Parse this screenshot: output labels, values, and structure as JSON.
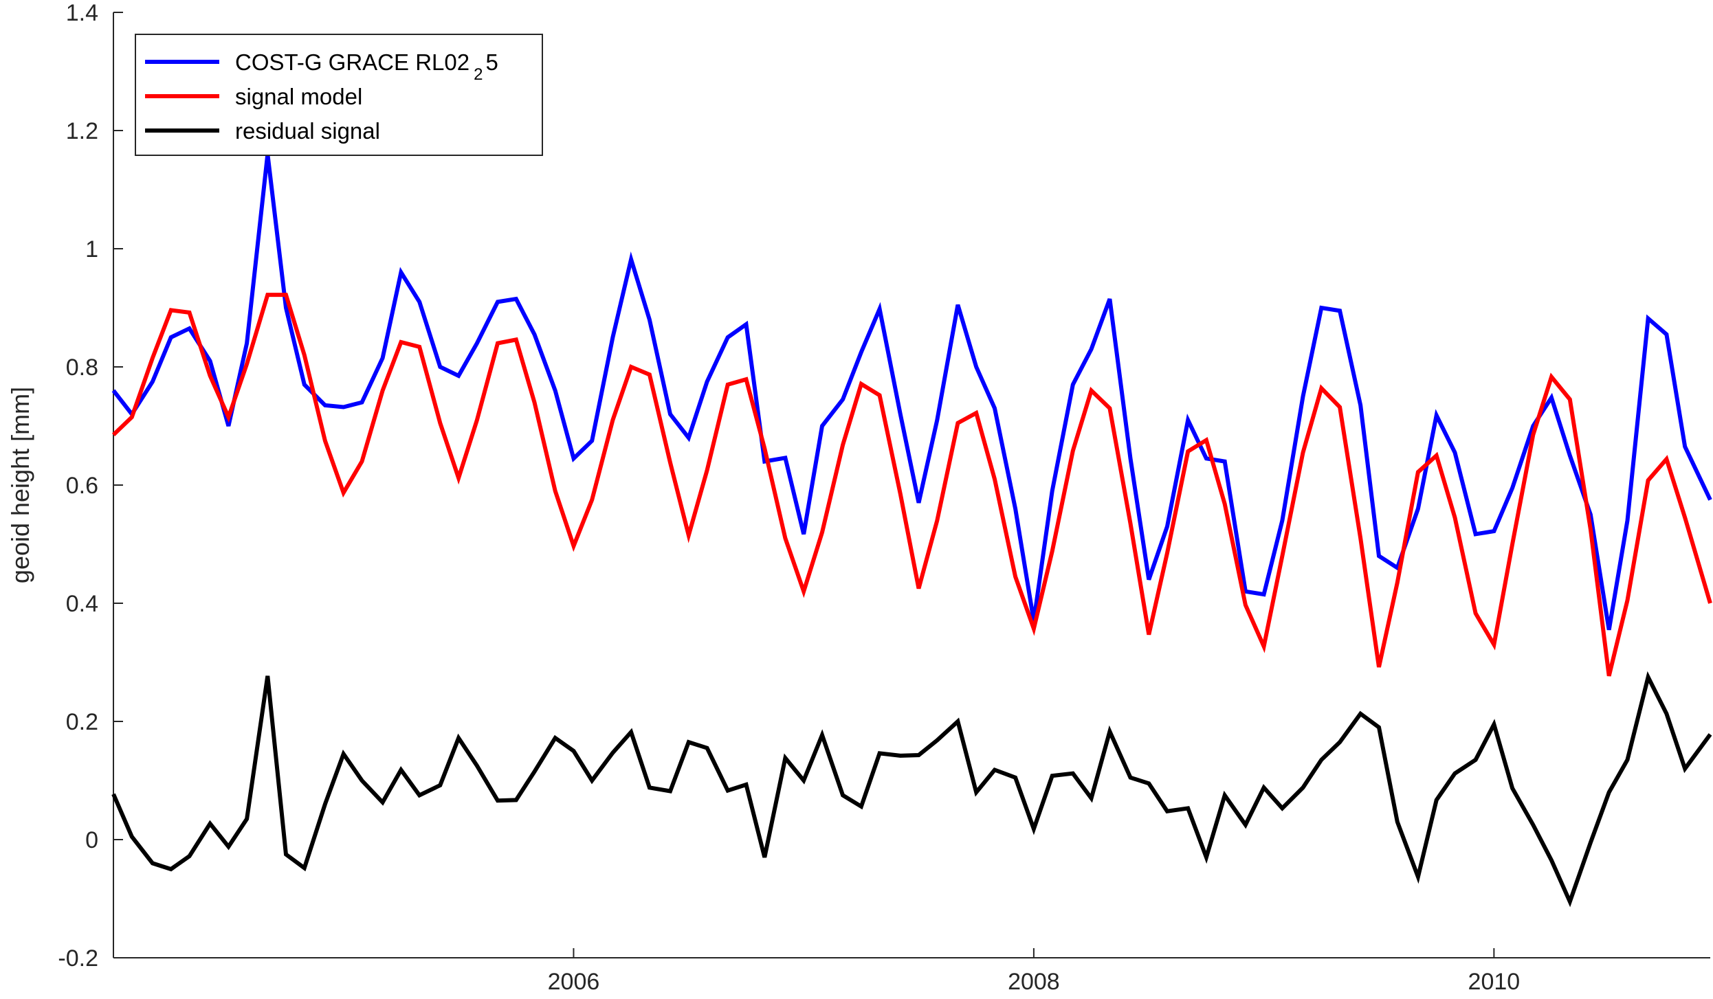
{
  "chart_data": {
    "type": "line",
    "ylabel": "geoid height [mm]",
    "xlabel": "",
    "xlim": [
      2004.0,
      2010.94
    ],
    "ylim": [
      -0.2,
      1.4
    ],
    "xticks": [
      {
        "value": 2006,
        "label": "2006"
      },
      {
        "value": 2008,
        "label": "2008"
      },
      {
        "value": 2010,
        "label": "2010"
      }
    ],
    "yticks": [
      {
        "value": -0.2,
        "label": "-0.2"
      },
      {
        "value": 0,
        "label": "0"
      },
      {
        "value": 0.2,
        "label": "0.2"
      },
      {
        "value": 0.4,
        "label": "0.4"
      },
      {
        "value": 0.6,
        "label": "0.6"
      },
      {
        "value": 0.8,
        "label": "0.8"
      },
      {
        "value": 1,
        "label": "1"
      },
      {
        "value": 1.2,
        "label": "1.2"
      },
      {
        "value": 1.4,
        "label": "1.4"
      }
    ],
    "grid": false,
    "legend_position": "top-left",
    "series": [
      {
        "name": "COST-G GRACE RL02",
        "name_subscript": "2",
        "name_suffix": "5",
        "color": "#0000ff",
        "points": [
          [
            2004.0,
            0.76
          ],
          [
            2004.08,
            0.72
          ],
          [
            2004.17,
            0.775
          ],
          [
            2004.25,
            0.85
          ],
          [
            2004.33,
            0.865
          ],
          [
            2004.42,
            0.81
          ],
          [
            2004.5,
            0.7
          ],
          [
            2004.58,
            0.84
          ],
          [
            2004.67,
            1.16
          ],
          [
            2004.75,
            0.9
          ],
          [
            2004.83,
            0.77
          ],
          [
            2004.92,
            0.735
          ],
          [
            2005.0,
            0.732
          ],
          [
            2005.08,
            0.74
          ],
          [
            2005.17,
            0.815
          ],
          [
            2005.25,
            0.96
          ],
          [
            2005.33,
            0.91
          ],
          [
            2005.42,
            0.8
          ],
          [
            2005.5,
            0.785
          ],
          [
            2005.58,
            0.84
          ],
          [
            2005.67,
            0.91
          ],
          [
            2005.75,
            0.915
          ],
          [
            2005.83,
            0.855
          ],
          [
            2005.92,
            0.76
          ],
          [
            2006.0,
            0.645
          ],
          [
            2006.08,
            0.675
          ],
          [
            2006.17,
            0.85
          ],
          [
            2006.25,
            0.982
          ],
          [
            2006.33,
            0.88
          ],
          [
            2006.42,
            0.72
          ],
          [
            2006.5,
            0.68
          ],
          [
            2006.58,
            0.775
          ],
          [
            2006.67,
            0.85
          ],
          [
            2006.75,
            0.872
          ],
          [
            2006.83,
            0.64
          ],
          [
            2006.92,
            0.646
          ],
          [
            2007.0,
            0.517
          ],
          [
            2007.08,
            0.7
          ],
          [
            2007.17,
            0.745
          ],
          [
            2007.25,
            0.825
          ],
          [
            2007.33,
            0.898
          ],
          [
            2007.42,
            0.72
          ],
          [
            2007.5,
            0.57
          ],
          [
            2007.58,
            0.71
          ],
          [
            2007.67,
            0.905
          ],
          [
            2007.75,
            0.8
          ],
          [
            2007.83,
            0.73
          ],
          [
            2007.92,
            0.56
          ],
          [
            2008.0,
            0.37
          ],
          [
            2008.08,
            0.59
          ],
          [
            2008.17,
            0.77
          ],
          [
            2008.25,
            0.83
          ],
          [
            2008.33,
            0.915
          ],
          [
            2008.42,
            0.645
          ],
          [
            2008.5,
            0.44
          ],
          [
            2008.58,
            0.53
          ],
          [
            2008.67,
            0.71
          ],
          [
            2008.75,
            0.645
          ],
          [
            2008.83,
            0.64
          ],
          [
            2008.92,
            0.42
          ],
          [
            2009.0,
            0.415
          ],
          [
            2009.08,
            0.54
          ],
          [
            2009.17,
            0.75
          ],
          [
            2009.25,
            0.9
          ],
          [
            2009.33,
            0.895
          ],
          [
            2009.42,
            0.735
          ],
          [
            2009.5,
            0.48
          ],
          [
            2009.58,
            0.46
          ],
          [
            2009.67,
            0.56
          ],
          [
            2009.75,
            0.718
          ],
          [
            2009.83,
            0.655
          ],
          [
            2009.92,
            0.517
          ],
          [
            2010.0,
            0.522
          ],
          [
            2010.08,
            0.595
          ],
          [
            2010.17,
            0.7
          ],
          [
            2010.25,
            0.748
          ],
          [
            2010.33,
            0.65
          ],
          [
            2010.42,
            0.55
          ],
          [
            2010.5,
            0.355
          ],
          [
            2010.58,
            0.54
          ],
          [
            2010.67,
            0.882
          ],
          [
            2010.75,
            0.855
          ],
          [
            2010.83,
            0.665
          ],
          [
            2010.94,
            0.575
          ]
        ]
      },
      {
        "name": "signal model",
        "color": "#ff0000",
        "points": [
          [
            2004.0,
            0.685
          ],
          [
            2004.08,
            0.715
          ],
          [
            2004.17,
            0.815
          ],
          [
            2004.25,
            0.896
          ],
          [
            2004.33,
            0.892
          ],
          [
            2004.42,
            0.785
          ],
          [
            2004.5,
            0.715
          ],
          [
            2004.58,
            0.805
          ],
          [
            2004.67,
            0.922
          ],
          [
            2004.75,
            0.922
          ],
          [
            2004.83,
            0.82
          ],
          [
            2004.92,
            0.675
          ],
          [
            2005.0,
            0.587
          ],
          [
            2005.08,
            0.64
          ],
          [
            2005.17,
            0.76
          ],
          [
            2005.25,
            0.842
          ],
          [
            2005.33,
            0.834
          ],
          [
            2005.42,
            0.705
          ],
          [
            2005.5,
            0.612
          ],
          [
            2005.58,
            0.71
          ],
          [
            2005.67,
            0.84
          ],
          [
            2005.75,
            0.846
          ],
          [
            2005.83,
            0.74
          ],
          [
            2005.92,
            0.59
          ],
          [
            2006.0,
            0.497
          ],
          [
            2006.08,
            0.575
          ],
          [
            2006.17,
            0.71
          ],
          [
            2006.25,
            0.8
          ],
          [
            2006.33,
            0.787
          ],
          [
            2006.42,
            0.638
          ],
          [
            2006.5,
            0.515
          ],
          [
            2006.58,
            0.625
          ],
          [
            2006.67,
            0.77
          ],
          [
            2006.75,
            0.779
          ],
          [
            2006.83,
            0.662
          ],
          [
            2006.92,
            0.51
          ],
          [
            2007.0,
            0.42
          ],
          [
            2007.08,
            0.52
          ],
          [
            2007.17,
            0.668
          ],
          [
            2007.25,
            0.771
          ],
          [
            2007.33,
            0.752
          ],
          [
            2007.42,
            0.585
          ],
          [
            2007.5,
            0.425
          ],
          [
            2007.58,
            0.54
          ],
          [
            2007.67,
            0.705
          ],
          [
            2007.75,
            0.722
          ],
          [
            2007.83,
            0.61
          ],
          [
            2007.92,
            0.445
          ],
          [
            2008.0,
            0.357
          ],
          [
            2008.08,
            0.488
          ],
          [
            2008.17,
            0.658
          ],
          [
            2008.25,
            0.76
          ],
          [
            2008.33,
            0.73
          ],
          [
            2008.42,
            0.535
          ],
          [
            2008.5,
            0.347
          ],
          [
            2008.58,
            0.485
          ],
          [
            2008.67,
            0.657
          ],
          [
            2008.75,
            0.676
          ],
          [
            2008.83,
            0.568
          ],
          [
            2008.92,
            0.397
          ],
          [
            2009.0,
            0.327
          ],
          [
            2009.08,
            0.48
          ],
          [
            2009.17,
            0.655
          ],
          [
            2009.25,
            0.764
          ],
          [
            2009.33,
            0.732
          ],
          [
            2009.42,
            0.51
          ],
          [
            2009.5,
            0.292
          ],
          [
            2009.58,
            0.435
          ],
          [
            2009.67,
            0.622
          ],
          [
            2009.75,
            0.65
          ],
          [
            2009.83,
            0.545
          ],
          [
            2009.92,
            0.383
          ],
          [
            2010.0,
            0.33
          ],
          [
            2010.08,
            0.5
          ],
          [
            2010.17,
            0.685
          ],
          [
            2010.25,
            0.783
          ],
          [
            2010.33,
            0.745
          ],
          [
            2010.42,
            0.525
          ],
          [
            2010.5,
            0.277
          ],
          [
            2010.58,
            0.405
          ],
          [
            2010.67,
            0.608
          ],
          [
            2010.75,
            0.644
          ],
          [
            2010.83,
            0.545
          ],
          [
            2010.94,
            0.4
          ]
        ]
      },
      {
        "name": "residual signal",
        "color": "#000000",
        "points": [
          [
            2004.0,
            0.077
          ],
          [
            2004.08,
            0.005
          ],
          [
            2004.17,
            -0.04
          ],
          [
            2004.25,
            -0.05
          ],
          [
            2004.33,
            -0.028
          ],
          [
            2004.42,
            0.027
          ],
          [
            2004.5,
            -0.012
          ],
          [
            2004.58,
            0.035
          ],
          [
            2004.67,
            0.277
          ],
          [
            2004.75,
            -0.025
          ],
          [
            2004.83,
            -0.048
          ],
          [
            2004.92,
            0.06
          ],
          [
            2005.0,
            0.145
          ],
          [
            2005.08,
            0.1
          ],
          [
            2005.17,
            0.063
          ],
          [
            2005.25,
            0.118
          ],
          [
            2005.33,
            0.075
          ],
          [
            2005.42,
            0.092
          ],
          [
            2005.5,
            0.172
          ],
          [
            2005.58,
            0.125
          ],
          [
            2005.67,
            0.066
          ],
          [
            2005.75,
            0.067
          ],
          [
            2005.83,
            0.115
          ],
          [
            2005.92,
            0.172
          ],
          [
            2006.0,
            0.15
          ],
          [
            2006.08,
            0.1
          ],
          [
            2006.17,
            0.147
          ],
          [
            2006.25,
            0.182
          ],
          [
            2006.33,
            0.088
          ],
          [
            2006.42,
            0.082
          ],
          [
            2006.5,
            0.165
          ],
          [
            2006.58,
            0.155
          ],
          [
            2006.67,
            0.083
          ],
          [
            2006.75,
            0.093
          ],
          [
            2006.83,
            -0.03
          ],
          [
            2006.92,
            0.138
          ],
          [
            2007.0,
            0.1
          ],
          [
            2007.08,
            0.177
          ],
          [
            2007.17,
            0.075
          ],
          [
            2007.25,
            0.056
          ],
          [
            2007.33,
            0.146
          ],
          [
            2007.42,
            0.142
          ],
          [
            2007.5,
            0.143
          ],
          [
            2007.58,
            0.168
          ],
          [
            2007.67,
            0.2
          ],
          [
            2007.75,
            0.08
          ],
          [
            2007.83,
            0.118
          ],
          [
            2007.92,
            0.105
          ],
          [
            2008.0,
            0.018
          ],
          [
            2008.08,
            0.108
          ],
          [
            2008.17,
            0.112
          ],
          [
            2008.25,
            0.07
          ],
          [
            2008.33,
            0.183
          ],
          [
            2008.42,
            0.105
          ],
          [
            2008.5,
            0.095
          ],
          [
            2008.58,
            0.048
          ],
          [
            2008.67,
            0.053
          ],
          [
            2008.75,
            -0.03
          ],
          [
            2008.83,
            0.075
          ],
          [
            2008.92,
            0.025
          ],
          [
            2009.0,
            0.088
          ],
          [
            2009.08,
            0.053
          ],
          [
            2009.17,
            0.088
          ],
          [
            2009.25,
            0.135
          ],
          [
            2009.33,
            0.165
          ],
          [
            2009.42,
            0.213
          ],
          [
            2009.5,
            0.19
          ],
          [
            2009.58,
            0.03
          ],
          [
            2009.67,
            -0.063
          ],
          [
            2009.75,
            0.067
          ],
          [
            2009.83,
            0.112
          ],
          [
            2009.92,
            0.135
          ],
          [
            2010.0,
            0.195
          ],
          [
            2010.08,
            0.087
          ],
          [
            2010.17,
            0.025
          ],
          [
            2010.25,
            -0.035
          ],
          [
            2010.33,
            -0.105
          ],
          [
            2010.42,
            -0.005
          ],
          [
            2010.5,
            0.08
          ],
          [
            2010.58,
            0.135
          ],
          [
            2010.67,
            0.275
          ],
          [
            2010.75,
            0.213
          ],
          [
            2010.83,
            0.12
          ],
          [
            2010.94,
            0.178
          ]
        ]
      }
    ]
  }
}
